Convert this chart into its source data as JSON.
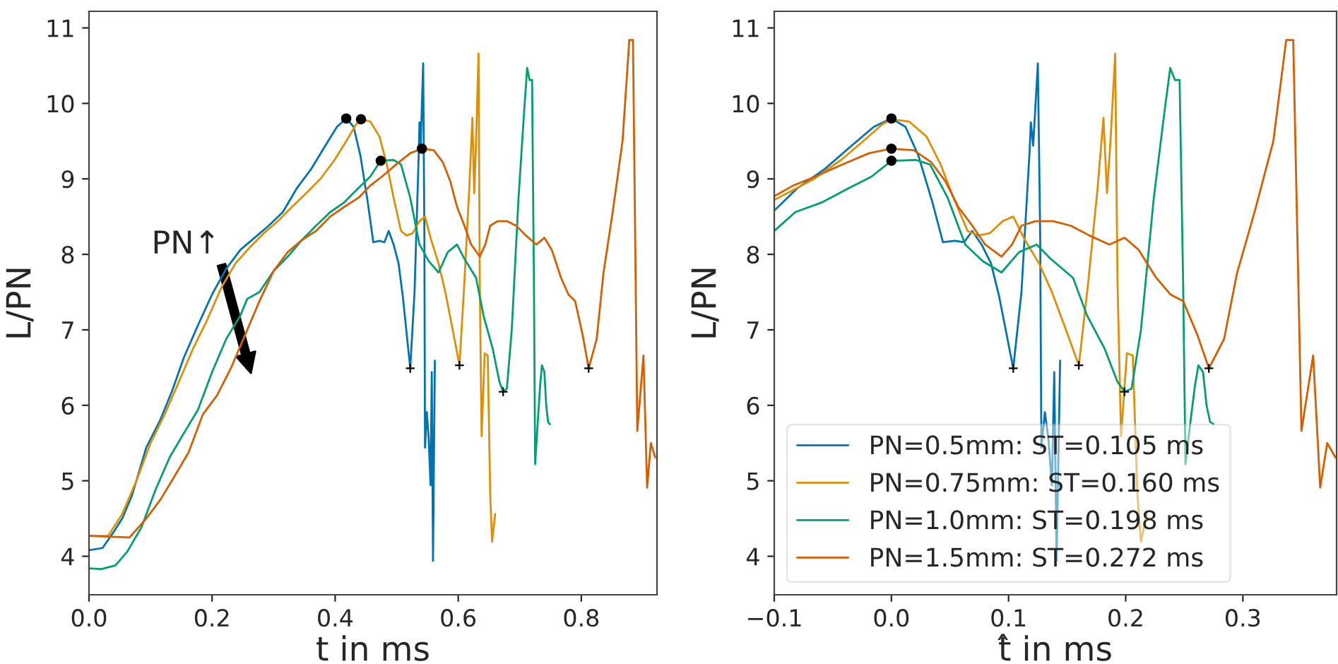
{
  "chart_data": [
    {
      "type": "line",
      "xlabel": "t in ms",
      "ylabel": "L/PN",
      "xlim": [
        0,
        0.923
      ],
      "ylim": [
        3.49,
        11.22
      ],
      "xticks": [
        {
          "value": 0,
          "label": "0.0"
        },
        {
          "value": 0.2,
          "label": "0.2"
        },
        {
          "value": 0.4,
          "label": "0.4"
        },
        {
          "value": 0.6,
          "label": "0.6"
        },
        {
          "value": 0.8,
          "label": "0.8"
        }
      ],
      "yticks": [
        4,
        5,
        6,
        7,
        8,
        9,
        10,
        11
      ],
      "grid": false,
      "legend": false,
      "annotations": [
        "PN↑"
      ],
      "series": [
        {
          "color": "#0173b2",
          "x": [
            0.0,
            0.022,
            0.039,
            0.054,
            0.07,
            0.093,
            0.116,
            0.135,
            0.154,
            0.177,
            0.2,
            0.223,
            0.246,
            0.269,
            0.292,
            0.315,
            0.338,
            0.361,
            0.384,
            0.403,
            0.418,
            0.43,
            0.441,
            0.453,
            0.462,
            0.472,
            0.48,
            0.487,
            0.495,
            0.503,
            0.51,
            0.522,
            0.529,
            0.536,
            0.537,
            0.539,
            0.543,
            0.545,
            0.546,
            0.549,
            0.552,
            0.555,
            0.557,
            0.559,
            0.562
          ],
          "values": [
            4.08,
            4.11,
            4.31,
            4.5,
            4.81,
            5.44,
            5.81,
            6.19,
            6.63,
            7.06,
            7.47,
            7.81,
            8.06,
            8.22,
            8.38,
            8.56,
            8.88,
            9.13,
            9.44,
            9.69,
            9.8,
            9.69,
            9.31,
            8.69,
            8.16,
            8.18,
            8.16,
            8.31,
            8.13,
            7.88,
            7.44,
            6.49,
            7.5,
            9.38,
            9.75,
            9.44,
            10.53,
            8.25,
            5.44,
            5.91,
            5.56,
            4.94,
            6.44,
            3.94,
            6.59
          ]
        },
        {
          "color": "#de8f05",
          "x": [
            0.0,
            0.031,
            0.054,
            0.077,
            0.1,
            0.123,
            0.146,
            0.169,
            0.192,
            0.215,
            0.238,
            0.261,
            0.284,
            0.307,
            0.33,
            0.353,
            0.376,
            0.399,
            0.418,
            0.434,
            0.442,
            0.457,
            0.472,
            0.484,
            0.495,
            0.507,
            0.516,
            0.526,
            0.537,
            0.546,
            0.556,
            0.568,
            0.579,
            0.591,
            0.602,
            0.61,
            0.618,
            0.623,
            0.626,
            0.629,
            0.633,
            0.635,
            0.638,
            0.643,
            0.648,
            0.652,
            0.655,
            0.66
          ],
          "values": [
            4.27,
            4.27,
            4.56,
            5.0,
            5.5,
            5.88,
            6.31,
            6.75,
            7.13,
            7.56,
            7.88,
            8.09,
            8.28,
            8.44,
            8.63,
            8.81,
            9.0,
            9.25,
            9.5,
            9.72,
            9.79,
            9.76,
            9.56,
            9.19,
            8.75,
            8.31,
            8.25,
            8.28,
            8.44,
            8.5,
            8.19,
            7.88,
            7.5,
            7.0,
            6.53,
            7.63,
            8.88,
            9.81,
            8.81,
            9.5,
            10.66,
            7.63,
            5.59,
            6.69,
            6.66,
            4.81,
            4.19,
            4.56
          ]
        },
        {
          "color": "#029e73",
          "x": [
            0.0,
            0.02,
            0.043,
            0.062,
            0.085,
            0.108,
            0.131,
            0.154,
            0.177,
            0.2,
            0.223,
            0.246,
            0.257,
            0.277,
            0.3,
            0.323,
            0.346,
            0.369,
            0.392,
            0.415,
            0.438,
            0.457,
            0.474,
            0.495,
            0.507,
            0.522,
            0.537,
            0.552,
            0.568,
            0.583,
            0.598,
            0.61,
            0.629,
            0.641,
            0.656,
            0.667,
            0.673,
            0.679,
            0.687,
            0.698,
            0.707,
            0.712,
            0.716,
            0.72,
            0.723,
            0.725,
            0.729,
            0.733,
            0.736,
            0.74,
            0.743,
            0.746,
            0.749
          ],
          "values": [
            3.84,
            3.83,
            3.88,
            4.06,
            4.38,
            4.88,
            5.31,
            5.63,
            5.94,
            6.44,
            6.88,
            7.19,
            7.41,
            7.5,
            7.78,
            7.97,
            8.19,
            8.38,
            8.56,
            8.69,
            8.88,
            9.03,
            9.24,
            9.25,
            9.19,
            8.75,
            8.13,
            7.91,
            7.76,
            8.03,
            8.13,
            7.94,
            7.69,
            7.19,
            6.75,
            6.31,
            6.18,
            6.22,
            7.0,
            8.75,
            9.88,
            10.47,
            10.31,
            10.31,
            7.63,
            5.22,
            5.75,
            6.25,
            6.53,
            6.44,
            6.0,
            5.78,
            5.75
          ]
        },
        {
          "color": "#d55e00",
          "x": [
            0.0,
            0.066,
            0.093,
            0.116,
            0.139,
            0.162,
            0.185,
            0.208,
            0.231,
            0.254,
            0.277,
            0.3,
            0.323,
            0.346,
            0.369,
            0.392,
            0.415,
            0.438,
            0.457,
            0.476,
            0.499,
            0.522,
            0.541,
            0.56,
            0.575,
            0.587,
            0.598,
            0.61,
            0.621,
            0.635,
            0.644,
            0.652,
            0.664,
            0.679,
            0.694,
            0.71,
            0.727,
            0.74,
            0.752,
            0.767,
            0.779,
            0.79,
            0.802,
            0.812,
            0.825,
            0.836,
            0.851,
            0.867,
            0.878,
            0.884,
            0.891,
            0.901,
            0.907,
            0.913,
            0.92
          ],
          "values": [
            4.27,
            4.25,
            4.5,
            4.75,
            5.06,
            5.38,
            5.88,
            6.13,
            6.5,
            6.94,
            7.38,
            7.78,
            8.03,
            8.19,
            8.31,
            8.5,
            8.63,
            8.75,
            8.91,
            9.03,
            9.19,
            9.34,
            9.4,
            9.38,
            9.22,
            8.97,
            8.63,
            8.38,
            8.13,
            7.97,
            8.13,
            8.38,
            8.44,
            8.44,
            8.38,
            8.25,
            8.13,
            8.22,
            8.06,
            7.69,
            7.47,
            7.38,
            6.94,
            6.49,
            6.88,
            7.75,
            8.56,
            9.5,
            10.84,
            10.84,
            5.66,
            6.66,
            4.91,
            5.5,
            5.31
          ]
        },
        {
          "type": "scatter",
          "marker": "circle",
          "color": "#000000",
          "x": [
            0.418,
            0.442,
            0.474,
            0.541
          ],
          "values": [
            9.8,
            9.79,
            9.24,
            9.4
          ]
        },
        {
          "type": "scatter",
          "marker": "cross",
          "color": "#000000",
          "x": [
            0.522,
            0.602,
            0.673,
            0.812
          ],
          "values": [
            6.49,
            6.53,
            6.18,
            6.49
          ]
        }
      ]
    },
    {
      "type": "line",
      "xlabel": "t̂ in ms",
      "ylabel": "L/PN",
      "xlim": [
        -0.1,
        0.38
      ],
      "ylim": [
        3.49,
        11.22
      ],
      "xticks": [
        {
          "value": -0.1,
          "label": "−0.1"
        },
        {
          "value": 0,
          "label": "0.0"
        },
        {
          "value": 0.1,
          "label": "0.1"
        },
        {
          "value": 0.2,
          "label": "0.2"
        },
        {
          "value": 0.3,
          "label": "0.3"
        }
      ],
      "yticks": [
        4,
        5,
        6,
        7,
        8,
        9,
        10,
        11
      ],
      "grid": false,
      "legend": "bottom left",
      "series": [
        {
          "name": "PN=0.5mm: ST=0.105 ms",
          "color": "#0173b2",
          "x": [
            -0.1,
            -0.08,
            -0.057,
            -0.034,
            -0.015,
            0,
            0.012,
            0.023,
            0.035,
            0.044,
            0.054,
            0.062,
            0.069,
            0.077,
            0.085,
            0.092,
            0.104,
            0.111,
            0.118,
            0.119,
            0.121,
            0.125,
            0.127,
            0.128,
            0.131,
            0.134,
            0.137,
            0.139,
            0.141,
            0.144
          ],
          "values": [
            8.58,
            8.88,
            9.13,
            9.44,
            9.69,
            9.8,
            9.69,
            9.31,
            8.69,
            8.16,
            8.18,
            8.16,
            8.31,
            8.13,
            7.88,
            7.44,
            6.49,
            7.5,
            9.38,
            9.75,
            9.44,
            10.53,
            8.25,
            5.44,
            5.91,
            5.56,
            4.94,
            6.44,
            3.94,
            6.59
          ]
        },
        {
          "name": "PN=0.75mm: ST=0.160 ms",
          "color": "#de8f05",
          "x": [
            -0.1,
            -0.089,
            -0.066,
            -0.043,
            -0.024,
            -0.008,
            0,
            0.015,
            0.03,
            0.042,
            0.053,
            0.065,
            0.074,
            0.084,
            0.095,
            0.104,
            0.114,
            0.126,
            0.137,
            0.149,
            0.16,
            0.168,
            0.176,
            0.181,
            0.184,
            0.187,
            0.191,
            0.193,
            0.196,
            0.201,
            0.206,
            0.21,
            0.213,
            0.218
          ],
          "values": [
            8.72,
            8.81,
            9.0,
            9.25,
            9.5,
            9.72,
            9.79,
            9.76,
            9.56,
            9.19,
            8.75,
            8.31,
            8.25,
            8.28,
            8.44,
            8.5,
            8.19,
            7.88,
            7.5,
            7.0,
            6.53,
            7.63,
            8.88,
            9.81,
            8.81,
            9.5,
            10.66,
            7.63,
            5.59,
            6.69,
            6.66,
            4.81,
            4.19,
            4.56
          ]
        },
        {
          "name": "PN=1.0mm: ST=0.198 ms",
          "color": "#029e73",
          "x": [
            -0.1,
            -0.082,
            -0.059,
            -0.036,
            -0.017,
            0,
            0.021,
            0.033,
            0.048,
            0.063,
            0.078,
            0.094,
            0.109,
            0.124,
            0.136,
            0.155,
            0.167,
            0.182,
            0.193,
            0.199,
            0.205,
            0.213,
            0.224,
            0.233,
            0.238,
            0.242,
            0.246,
            0.249,
            0.251,
            0.255,
            0.259,
            0.262,
            0.266,
            0.269,
            0.272,
            0.275
          ],
          "values": [
            8.31,
            8.56,
            8.69,
            8.88,
            9.03,
            9.24,
            9.25,
            9.19,
            8.75,
            8.13,
            7.91,
            7.76,
            8.03,
            8.13,
            7.94,
            7.69,
            7.19,
            6.75,
            6.31,
            6.18,
            6.22,
            7.0,
            8.75,
            9.88,
            10.47,
            10.31,
            10.31,
            7.63,
            5.22,
            5.75,
            6.25,
            6.53,
            6.44,
            6.0,
            5.78,
            5.75
          ]
        },
        {
          "name": "PN=1.5mm: ST=0.272 ms",
          "color": "#d55e00",
          "x": [
            -0.1,
            -0.084,
            -0.065,
            -0.042,
            -0.019,
            0,
            0.019,
            0.034,
            0.046,
            0.057,
            0.069,
            0.08,
            0.094,
            0.103,
            0.111,
            0.123,
            0.138,
            0.153,
            0.169,
            0.186,
            0.199,
            0.211,
            0.226,
            0.238,
            0.249,
            0.261,
            0.271,
            0.284,
            0.295,
            0.31,
            0.326,
            0.337,
            0.343,
            0.35,
            0.36,
            0.366,
            0.372,
            0.379
          ],
          "values": [
            8.77,
            8.91,
            9.03,
            9.19,
            9.34,
            9.4,
            9.38,
            9.22,
            8.97,
            8.63,
            8.38,
            8.13,
            7.97,
            8.13,
            8.38,
            8.44,
            8.44,
            8.38,
            8.25,
            8.13,
            8.22,
            8.06,
            7.69,
            7.47,
            7.38,
            6.94,
            6.49,
            6.88,
            7.75,
            8.56,
            9.5,
            10.84,
            10.84,
            5.66,
            6.66,
            4.91,
            5.5,
            5.31
          ]
        },
        {
          "type": "scatter",
          "marker": "circle",
          "color": "#000000",
          "x": [
            0,
            0,
            0
          ],
          "values": [
            9.8,
            9.24,
            9.4
          ]
        },
        {
          "type": "scatter",
          "marker": "cross",
          "color": "#000000",
          "x": [
            0.104,
            0.16,
            0.199,
            0.271
          ],
          "values": [
            6.49,
            6.53,
            6.18,
            6.49
          ]
        }
      ]
    }
  ]
}
